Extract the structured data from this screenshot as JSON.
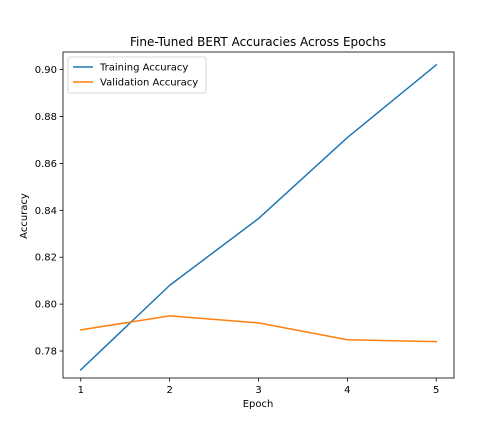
{
  "chart_data": {
    "type": "line",
    "title": "Fine-Tuned BERT Accuracies Across Epochs",
    "xlabel": "Epoch",
    "ylabel": "Accuracy",
    "x": [
      1,
      2,
      3,
      4,
      5
    ],
    "xticks": [
      "1",
      "2",
      "3",
      "4",
      "5"
    ],
    "yticks": [
      "0.78",
      "0.80",
      "0.82",
      "0.84",
      "0.86",
      "0.88",
      "0.90"
    ],
    "xlim": [
      0.8,
      5.2
    ],
    "ylim": [
      0.7685,
      0.9075
    ],
    "grid": false,
    "legend_position": "upper-left",
    "series": [
      {
        "name": "Training Accuracy",
        "color": "#1f77b4",
        "values": [
          0.772,
          0.808,
          0.8365,
          0.871,
          0.902
        ]
      },
      {
        "name": "Validation Accuracy",
        "color": "#ff7f0e",
        "values": [
          0.789,
          0.795,
          0.792,
          0.7848,
          0.784
        ]
      }
    ]
  }
}
